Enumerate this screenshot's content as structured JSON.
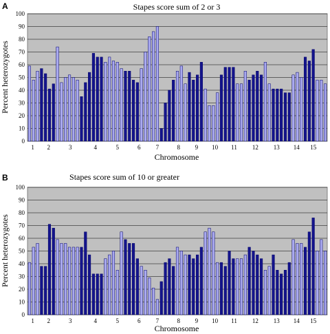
{
  "chart_data": [
    {
      "type": "bar",
      "panel_label": "A",
      "title": "Stapes score sum of 2 or 3",
      "xlabel": "Chromosome",
      "ylabel": "Percent heterozygotes",
      "ylim": [
        0,
        100
      ],
      "yticks": [
        0,
        10,
        20,
        30,
        40,
        50,
        60,
        70,
        80,
        90,
        100
      ],
      "grid": true,
      "x_tick_labels": [
        "1",
        "2",
        "3",
        "4",
        "5",
        "6",
        "7",
        "8",
        "9",
        "10",
        "11",
        "12",
        "13",
        "14",
        "15",
        "16",
        "17",
        "18",
        "19"
      ],
      "values": [
        59,
        48,
        55,
        57,
        53,
        41,
        45,
        74,
        46,
        50,
        52,
        50,
        48,
        35,
        46,
        54,
        69,
        66,
        66,
        62,
        66,
        63,
        62,
        57,
        55,
        55,
        48,
        46,
        57,
        70,
        82,
        86,
        90,
        10,
        30,
        40,
        48,
        55,
        59,
        45,
        54,
        48,
        52,
        62,
        41,
        28,
        28,
        38,
        52,
        58,
        58,
        58,
        45,
        45,
        55,
        48,
        52,
        55,
        52,
        62,
        45,
        41,
        41,
        41,
        38,
        38,
        52,
        54,
        50,
        66,
        63,
        72,
        48,
        48,
        45
      ],
      "series_colors": [
        "#a9a9f0",
        "#14148c"
      ],
      "highlight": [
        0,
        0,
        0,
        1,
        1,
        1,
        1,
        0,
        0,
        0,
        0,
        0,
        0,
        1,
        1,
        1,
        1,
        1,
        1,
        0,
        0,
        0,
        0,
        0,
        1,
        1,
        1,
        1,
        0,
        0,
        0,
        0,
        0,
        1,
        1,
        1,
        1,
        0,
        0,
        0,
        1,
        1,
        1,
        1,
        0,
        0,
        0,
        0,
        1,
        1,
        1,
        1,
        0,
        0,
        0,
        1,
        1,
        1,
        1,
        0,
        0,
        1,
        1,
        1,
        1,
        1,
        0,
        0,
        0,
        1,
        1,
        1,
        0,
        0,
        0
      ]
    },
    {
      "type": "bar",
      "panel_label": "B",
      "title": "Stapes score sum of 10 or greater",
      "xlabel": "Chromosome",
      "ylabel": "Percent heterozygotes",
      "ylim": [
        0,
        100
      ],
      "yticks": [
        0,
        10,
        20,
        30,
        40,
        50,
        60,
        70,
        80,
        90,
        100
      ],
      "grid": true,
      "x_tick_labels": [
        "1",
        "2",
        "3",
        "4",
        "5",
        "6",
        "7",
        "8",
        "9",
        "10",
        "11",
        "12",
        "13",
        "14",
        "15",
        "16",
        "17",
        "18",
        "19"
      ],
      "values": [
        41,
        53,
        56,
        38,
        38,
        71,
        68,
        59,
        56,
        56,
        53,
        53,
        53,
        53,
        65,
        47,
        32,
        32,
        32,
        44,
        47,
        50,
        35,
        65,
        59,
        56,
        56,
        44,
        38,
        35,
        29,
        21,
        12,
        26,
        41,
        44,
        38,
        53,
        50,
        47,
        47,
        44,
        47,
        53,
        65,
        68,
        65,
        41,
        41,
        38,
        50,
        44,
        44,
        44,
        47,
        53,
        50,
        47,
        44,
        35,
        38,
        47,
        35,
        32,
        35,
        41,
        59,
        56,
        56,
        53,
        65,
        76,
        50,
        59,
        50
      ],
      "series_colors": [
        "#a9a9f0",
        "#14148c"
      ],
      "highlight": [
        0,
        0,
        0,
        1,
        1,
        1,
        1,
        0,
        0,
        0,
        0,
        0,
        0,
        1,
        1,
        1,
        1,
        1,
        1,
        0,
        0,
        0,
        0,
        0,
        1,
        1,
        1,
        1,
        0,
        0,
        0,
        0,
        0,
        1,
        1,
        1,
        1,
        0,
        0,
        0,
        1,
        1,
        1,
        1,
        0,
        0,
        0,
        0,
        1,
        1,
        1,
        1,
        0,
        0,
        0,
        1,
        1,
        1,
        1,
        0,
        0,
        1,
        1,
        1,
        1,
        1,
        0,
        0,
        0,
        1,
        1,
        1,
        0,
        0,
        0
      ]
    }
  ],
  "plot_style": {
    "plot_bg": "#c0c0c0",
    "grid_color": "#000000",
    "bar_outline": "#000066"
  }
}
